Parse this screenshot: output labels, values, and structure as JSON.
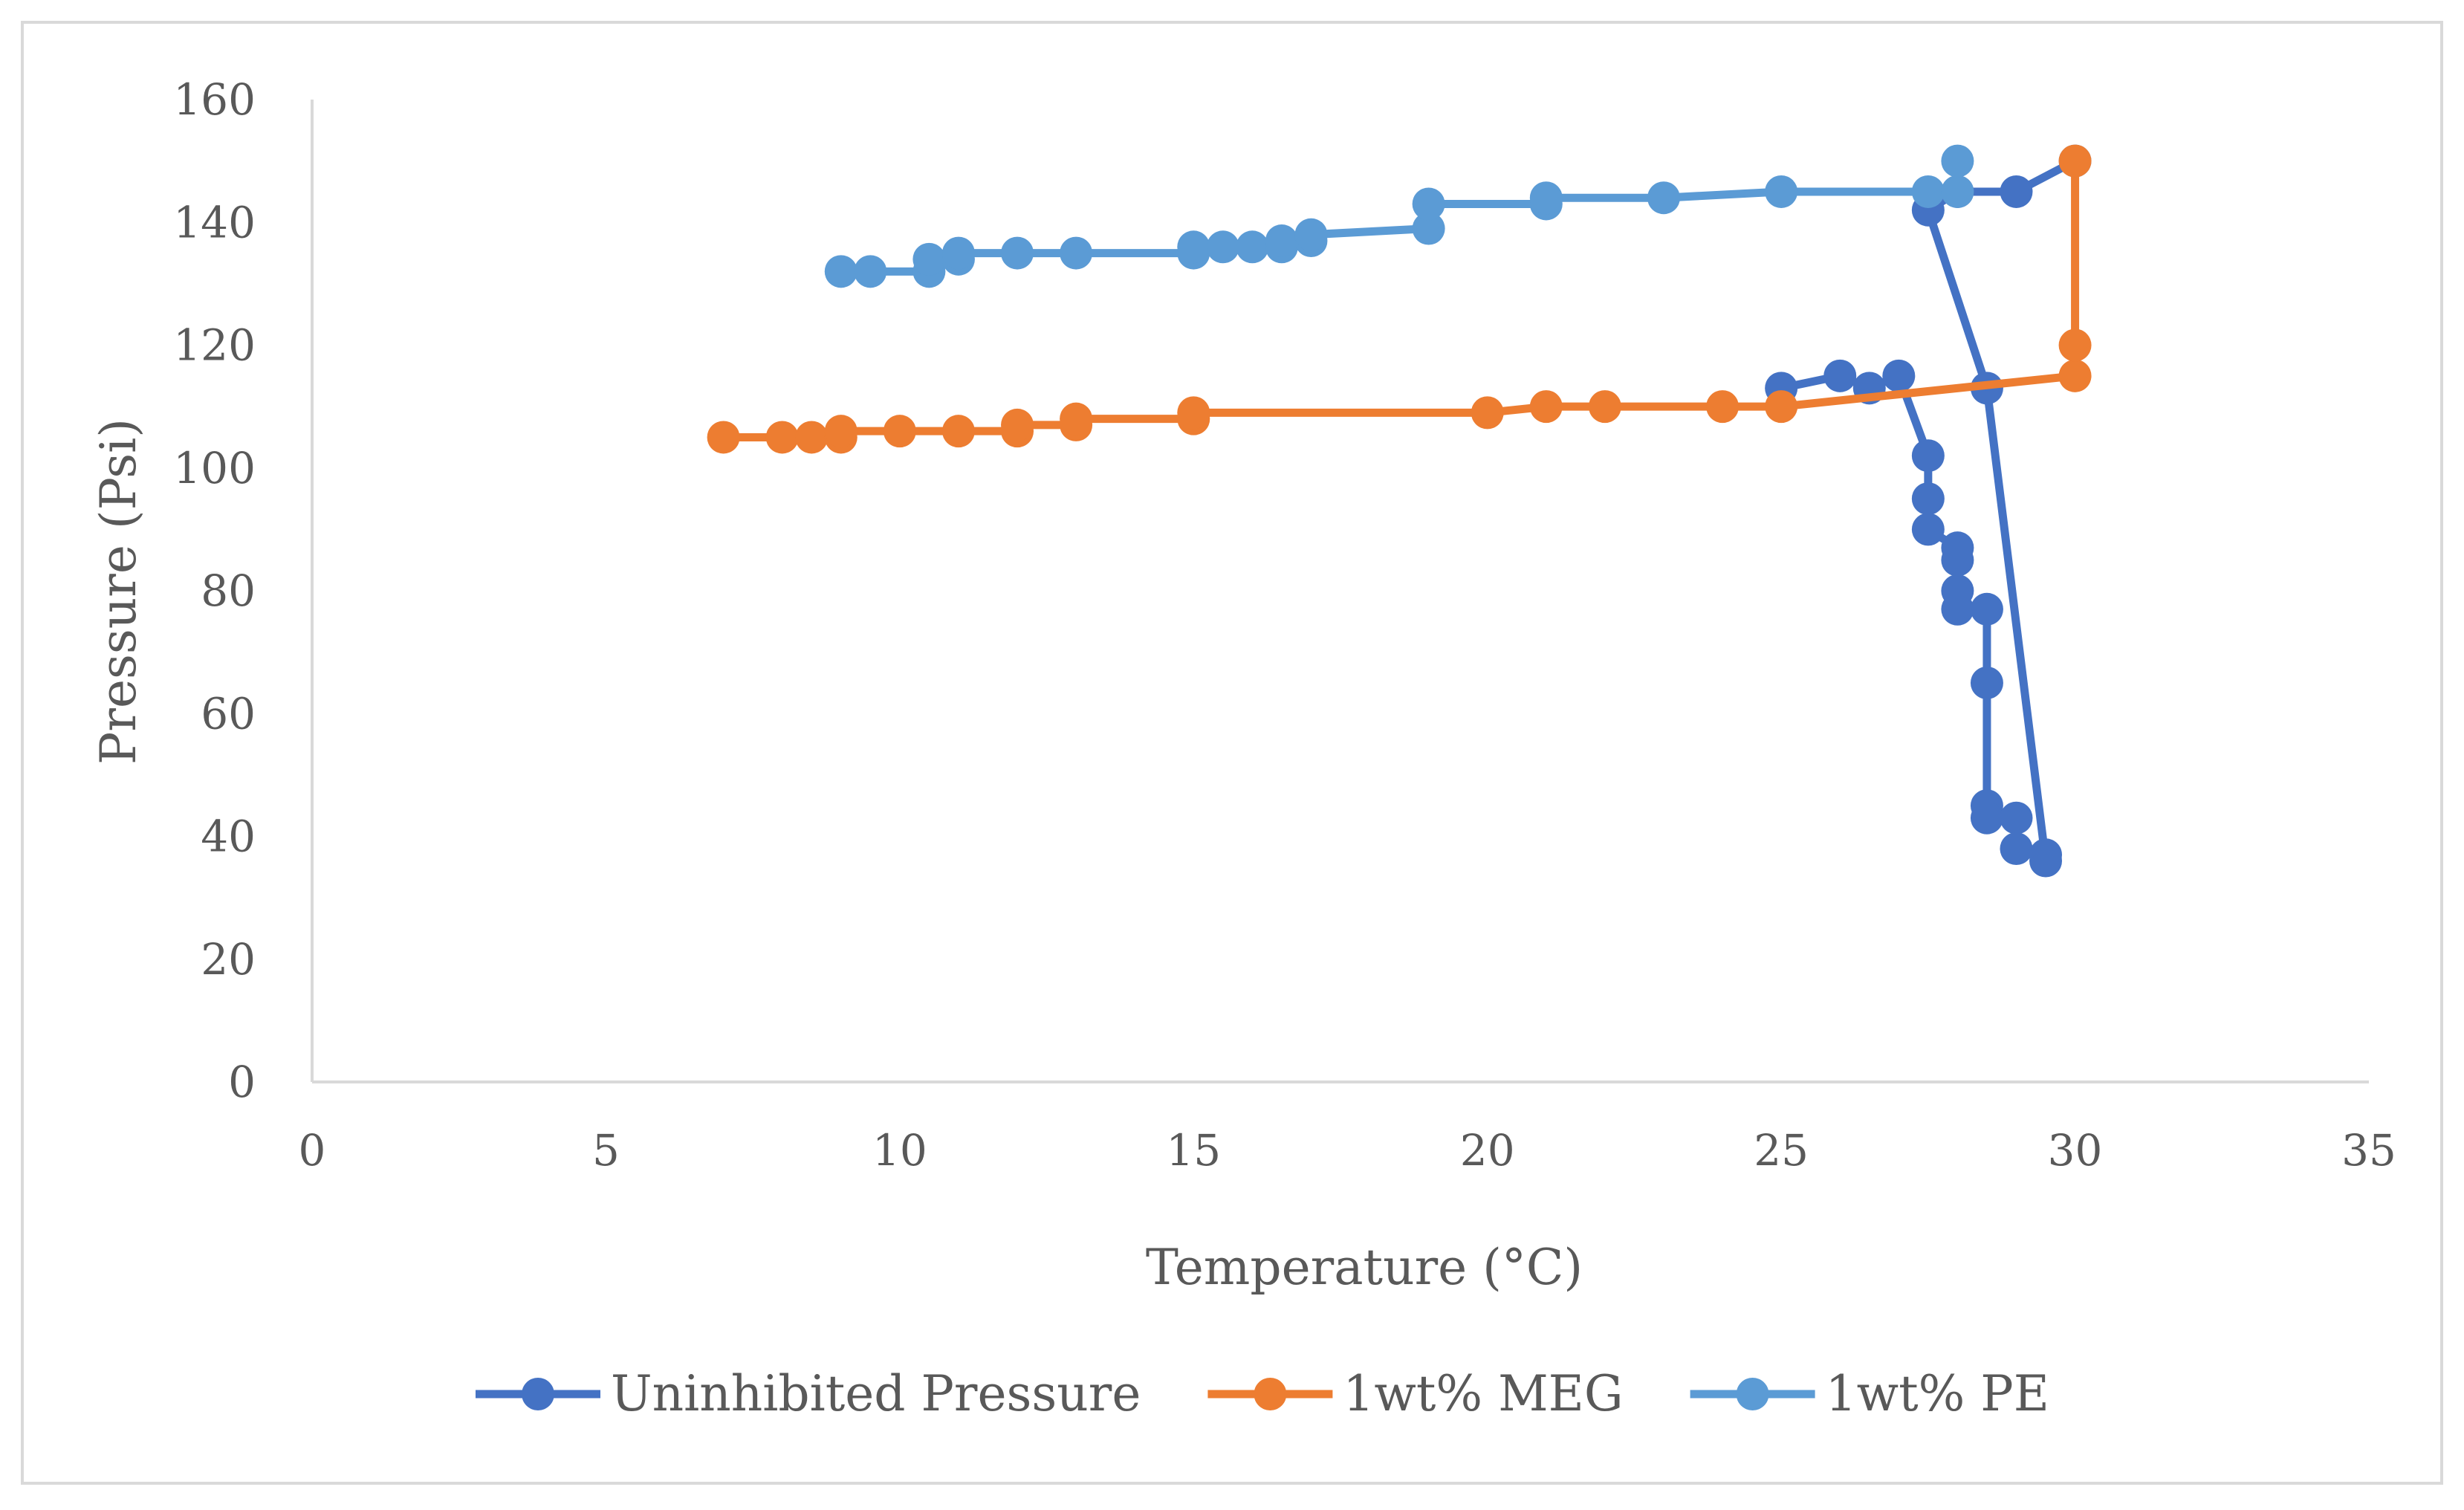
{
  "chart_data": {
    "type": "line",
    "title": "",
    "xlabel": "Temperature (°C)",
    "ylabel": "Pressure (Psi)",
    "xlim": [
      0,
      35
    ],
    "ylim": [
      0,
      160
    ],
    "xticks": [
      0,
      5,
      10,
      15,
      20,
      25,
      30,
      35
    ],
    "yticks": [
      0,
      20,
      40,
      60,
      80,
      100,
      120,
      140,
      160
    ],
    "grid": false,
    "legend_position": "bottom",
    "series": [
      {
        "name": "Uninhibited Pressure",
        "color": "#4472C4",
        "x": [
          25,
          26,
          26.5,
          27,
          27.5,
          27.5,
          27.5,
          28,
          28,
          28,
          28,
          28.5,
          28.5,
          28.5,
          28.5,
          29,
          29,
          29.5,
          29.5,
          28.5,
          27.5,
          28,
          29,
          30
        ],
        "y": [
          113,
          115,
          113,
          115,
          102,
          95,
          90,
          87,
          85,
          80,
          77,
          77,
          65,
          45,
          43,
          43,
          38,
          37,
          36,
          113,
          142,
          145,
          145,
          150
        ]
      },
      {
        "name": "1wt% MEG",
        "color": "#ED7D31",
        "x": [
          7,
          8,
          8.5,
          9,
          9,
          10,
          11,
          12,
          12,
          13,
          13,
          15,
          15,
          20,
          21,
          22,
          24,
          25,
          30,
          30,
          30
        ],
        "y": [
          105,
          105,
          105,
          105,
          106,
          106,
          106,
          106,
          107,
          107,
          108,
          108,
          109,
          109,
          110,
          110,
          110,
          110,
          115,
          120,
          150
        ]
      },
      {
        "name": "1wt% PE",
        "color": "#5B9BD5",
        "x": [
          9,
          9.5,
          10.5,
          10.5,
          11,
          11,
          12,
          13,
          15,
          15,
          15.5,
          16,
          16.5,
          16.5,
          17,
          17,
          19,
          19,
          21,
          21,
          23,
          25,
          27.5,
          28,
          28
        ],
        "y": [
          132,
          132,
          132,
          134,
          134,
          135,
          135,
          135,
          135,
          136,
          136,
          136,
          136,
          137,
          137,
          138,
          139,
          143,
          143,
          144,
          144,
          145,
          145,
          145,
          150
        ]
      }
    ]
  }
}
